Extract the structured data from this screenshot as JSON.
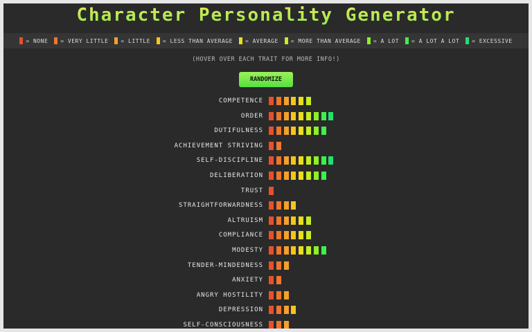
{
  "header": {
    "title": "Character Personality Generator"
  },
  "legend": [
    {
      "label": "= NONE",
      "color": "#e8502c"
    },
    {
      "label": "= VERY LITTLE",
      "color": "#f0762c"
    },
    {
      "label": "= LITTLE",
      "color": "#f5a02a"
    },
    {
      "label": "= LESS THAN AVERAGE",
      "color": "#f5c41e"
    },
    {
      "label": "= AVERAGE",
      "color": "#e8e01e"
    },
    {
      "label": "= MORE THAN AVERAGE",
      "color": "#c4ee22"
    },
    {
      "label": "= A LOT",
      "color": "#8cf02a"
    },
    {
      "label": "= A LOT A LOT",
      "color": "#3ef04a"
    },
    {
      "label": "= EXCESSIVE",
      "color": "#22e070"
    }
  ],
  "hint": "(HOVER OVER EACH TRAIT FOR MORE INFO!)",
  "button": "RANDOMIZE",
  "traits": [
    {
      "name": "COMPETENCE",
      "level": 6
    },
    {
      "name": "ORDER",
      "level": 9
    },
    {
      "name": "DUTIFULNESS",
      "level": 8
    },
    {
      "name": "ACHIEVEMENT STRIVING",
      "level": 2
    },
    {
      "name": "SELF-DISCIPLINE",
      "level": 9
    },
    {
      "name": "DELIBERATION",
      "level": 8
    },
    {
      "name": "TRUST",
      "level": 1
    },
    {
      "name": "STRAIGHTFORWARDNESS",
      "level": 4
    },
    {
      "name": "ALTRUISM",
      "level": 6
    },
    {
      "name": "COMPLIANCE",
      "level": 6
    },
    {
      "name": "MODESTY",
      "level": 8
    },
    {
      "name": "TENDER-MINDEDNESS",
      "level": 3
    },
    {
      "name": "ANXIETY",
      "level": 2
    },
    {
      "name": "ANGRY HOSTILITY",
      "level": 3
    },
    {
      "name": "DEPRESSION",
      "level": 4
    },
    {
      "name": "SELF-CONSCIOUSNESS",
      "level": 3
    }
  ]
}
